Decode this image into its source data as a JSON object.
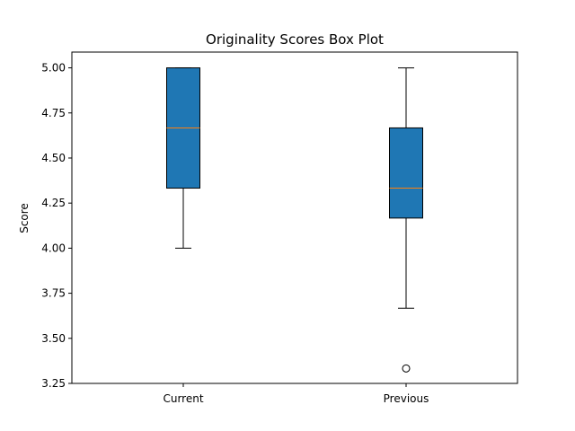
{
  "chart_data": {
    "type": "box",
    "title": "Originality Scores Box Plot",
    "xlabel": "",
    "ylabel": "Score",
    "ylim": [
      3.25,
      5.0875
    ],
    "yticks": [
      3.25,
      3.5,
      3.75,
      4.0,
      4.25,
      4.5,
      4.75,
      5.0
    ],
    "ytick_labels": [
      "3.25",
      "3.50",
      "3.75",
      "4.00",
      "4.25",
      "4.50",
      "4.75",
      "5.00"
    ],
    "categories": [
      "Current",
      "Previous"
    ],
    "boxes": [
      {
        "category": "Current",
        "whisker_low": 4.0,
        "q1": 4.333,
        "median": 4.667,
        "q3": 5.0,
        "whisker_high": 5.0,
        "outliers": []
      },
      {
        "category": "Previous",
        "whisker_low": 3.667,
        "q1": 4.167,
        "median": 4.333,
        "q3": 4.667,
        "whisker_high": 5.0,
        "outliers": [
          3.333
        ]
      }
    ],
    "grid": false,
    "legend": "none",
    "colors": {
      "box_fill": "#1f77b4",
      "median": "#ff7f0e",
      "line": "#000000"
    }
  }
}
